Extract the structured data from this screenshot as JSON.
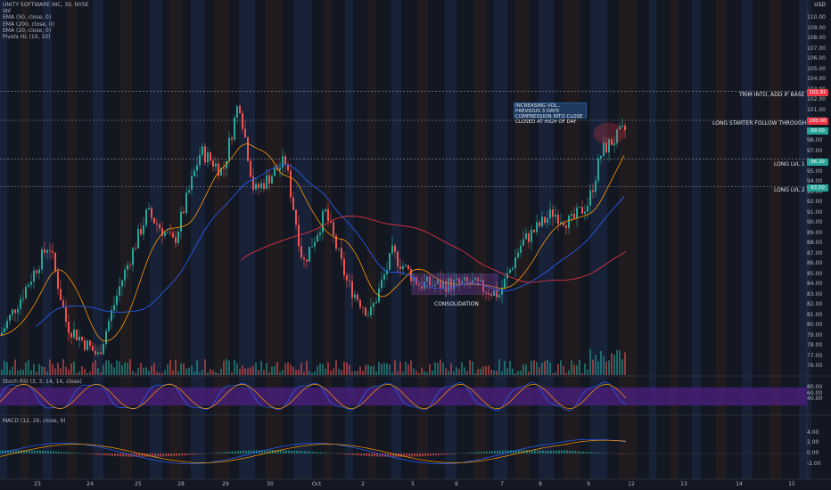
{
  "legend": {
    "symbol": "UNITY SOFTWARE INC, 30, NYSE",
    "vol": "Vol",
    "ema50": "EMA (50, close, 0)",
    "ema200": "EMA (200, close, 0)",
    "ema20": "EMA (20, close, 0)",
    "pivots": "Pivots HL (10, 10)"
  },
  "currency": "USD",
  "price_axis": [
    "110.00",
    "109.00",
    "108.00",
    "107.00",
    "106.00",
    "105.00",
    "104.00",
    "103.00",
    "102.00",
    "101.00",
    "100.00",
    "99.00",
    "98.00",
    "97.00",
    "96.00",
    "95.00",
    "94.00",
    "93.00",
    "92.00",
    "91.00",
    "90.00",
    "89.00",
    "88.00",
    "87.00",
    "86.00",
    "85.00",
    "84.00",
    "83.00",
    "82.00",
    "81.00",
    "80.00",
    "79.00",
    "78.00",
    "77.00",
    "76.00"
  ],
  "levels": {
    "trim": {
      "label": "TRIM INTO, ADD IF BASE",
      "tag": "102.81",
      "color": "#f23645"
    },
    "long_starter": {
      "label": "LONG STARTER FOLLOW THROUGH",
      "tag": "100.00",
      "color": "#f23645"
    },
    "current": {
      "tag": "99.00",
      "color": "#26a69a"
    },
    "long1": {
      "label": "LONG LVL 1",
      "tag": "96.20",
      "color": "#26a69a"
    },
    "long2": {
      "label": "LONG LVL 2",
      "tag": "93.50",
      "color": "#26a69a"
    }
  },
  "annotation": {
    "line1": "INCREASING VOL.. PREVIOUS 3 DAYS",
    "line2": "COMPRESSION INTO CLOSE",
    "line3": "CLOSED AT HIGH OF DAY"
  },
  "consolidation_label": "CONSOLIDATION",
  "stoch": {
    "label": "Stoch RSI (3, 3, 14, 14, close)",
    "axis": [
      "80.00",
      "60.00",
      "40.00"
    ]
  },
  "macd": {
    "label": "MACD (12, 26, close, 9)",
    "axis": [
      "4.00",
      "2.00",
      "0.00",
      "-2.00"
    ]
  },
  "dates": [
    "23",
    "24",
    "25",
    "28",
    "29",
    "30",
    "Oct",
    "2",
    "5",
    "6",
    "7",
    "8",
    "9",
    "12",
    "13",
    "14",
    "15"
  ],
  "colors": {
    "up": "#26a69a",
    "down": "#ef5350",
    "ema50": "#2962ff",
    "ema200": "#f23645",
    "ema20": "#ff9800",
    "stoch_k": "#2962ff",
    "stoch_d": "#ff9800",
    "macd": "#2962ff",
    "signal": "#ff9800",
    "band": "#4a1f7a"
  }
}
